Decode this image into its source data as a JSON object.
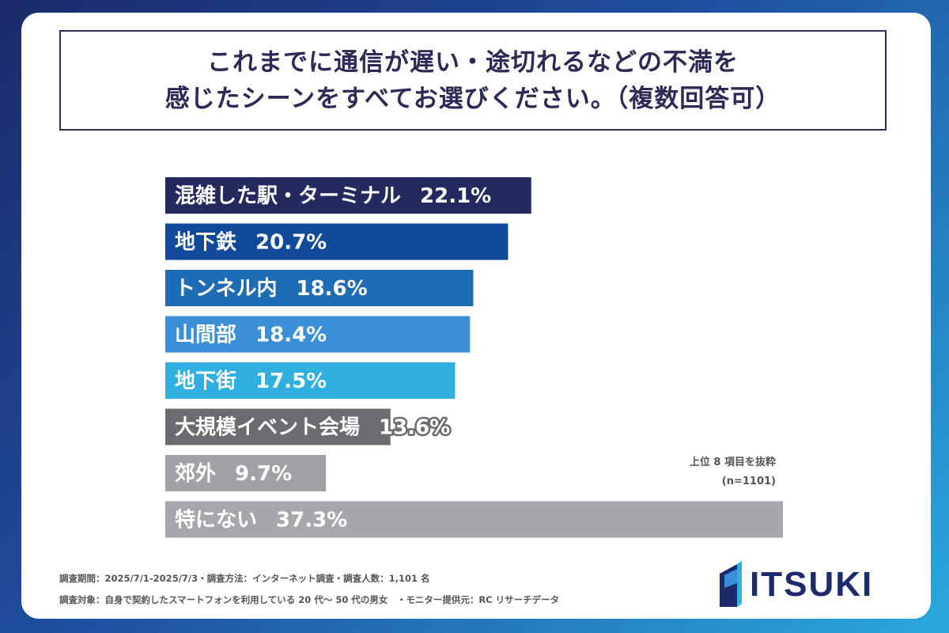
{
  "title": {
    "line1": "これまでに通信が遅い・途切れるなどの不満を",
    "line2": "感じたシーンをすべてお選びください。（複数回答可）"
  },
  "chart_data": {
    "type": "bar",
    "orientation": "horizontal",
    "categories": [
      "混雑した駅・ターミナル",
      "地下鉄",
      "トンネル内",
      "山間部",
      "地下街",
      "大規模イベント会場",
      "郊外",
      "特にない"
    ],
    "values": [
      22.1,
      20.7,
      18.6,
      18.4,
      17.5,
      13.6,
      9.7,
      37.3
    ],
    "value_labels": [
      "22.1%",
      "20.7%",
      "18.6%",
      "18.4%",
      "17.5%",
      "13.6%",
      "9.7%",
      "37.3%"
    ],
    "colors": [
      "#24295e",
      "#114a9a",
      "#1e6bb6",
      "#3b8fd8",
      "#2fb0e0",
      "#6b6b70",
      "#a3a1a5",
      "#a8a6aa"
    ],
    "unit": "%",
    "xlim": [
      0,
      37.3
    ],
    "title": "",
    "xlabel": "",
    "ylabel": ""
  },
  "notes": {
    "excerpt": "上位 8 項目を抜粋",
    "n": "(n=1101)"
  },
  "footer": {
    "line1": "調査期間：2025/7/1-2025/7/3・調査方法：インターネット調査・調査人数：1,101 名",
    "line2": "調査対象：自身で契約したスマートフォンを利用している 20 代〜 50 代の男女　・モニター提供元：RC リサーチデータ"
  },
  "logo": {
    "text": "ITSUKI",
    "color": "#1d2a6e"
  }
}
